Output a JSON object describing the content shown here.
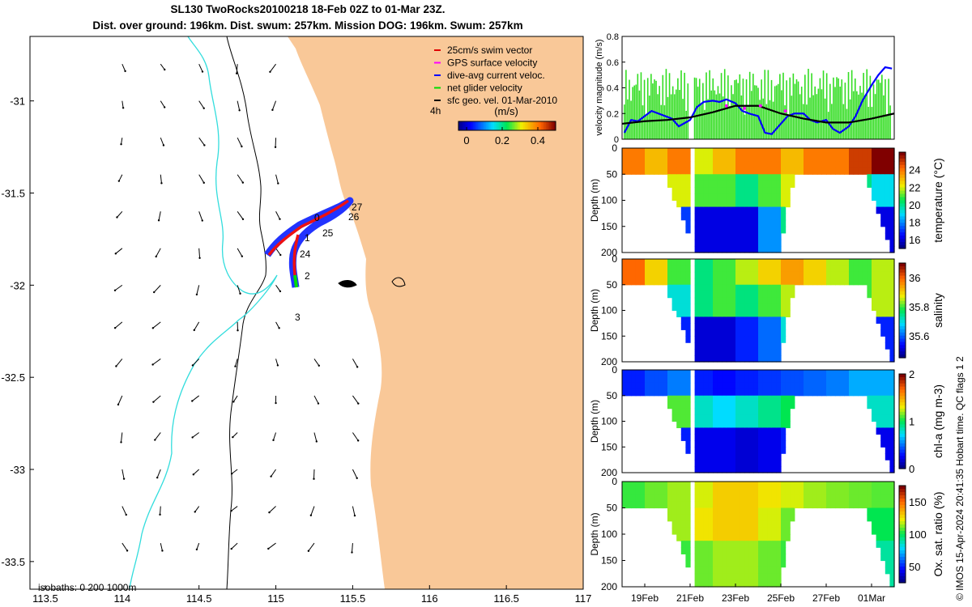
{
  "title": {
    "line1": "SL130 TwoRocks20100218 18-Feb 02Z to 01-Mar 23Z.",
    "line2": "Dist. over ground: 196km. Dist. swum: 257km. Mission DOG: 196km. Swum: 257km"
  },
  "map": {
    "x_ticks": [
      "113.5",
      "114",
      "114.5",
      "115",
      "115.5",
      "116",
      "116.5",
      "117"
    ],
    "y_ticks": [
      "-31",
      "-31.5",
      "-32",
      "-32.5",
      "-33",
      "-33.5"
    ],
    "legend": [
      {
        "label": "25cm/s swim vector",
        "color": "#e00000"
      },
      {
        "label": "GPS surface velocity",
        "color": "#ff00ff"
      },
      {
        "label": "dive-avg current veloc.",
        "color": "#0000ff"
      },
      {
        "label": "net glider velocity",
        "color": "#00dd00"
      },
      {
        "label": "sfc geo. vel. 01-Mar-2010",
        "color": "#000000"
      }
    ],
    "colorbar_label": "(m/s)",
    "colorbar_prefix": "4h",
    "colorbar_ticks": [
      "0",
      "0.2",
      "0.4"
    ],
    "isobaths_label": "isobaths: 0   200  1000m",
    "day_labels": [
      {
        "text": "27"
      },
      {
        "text": "26"
      },
      {
        "text": "25"
      },
      {
        "text": "24"
      },
      {
        "text": "1"
      },
      {
        "text": "2"
      },
      {
        "text": "3"
      },
      {
        "text": "0"
      }
    ],
    "colors": {
      "land": "#f9c898",
      "isobath_200": "#000000",
      "isobath_1000": "#33dddd"
    }
  },
  "chart_data": [
    {
      "type": "line",
      "title": "",
      "ylabel": "velocity magnitude (m/s)",
      "ylim": [
        0,
        0.8
      ],
      "yticks": [
        "0",
        "0.2",
        "0.4",
        "0.6",
        "0.8"
      ],
      "xlim_days": [
        18.0,
        30.0
      ],
      "series": [
        {
          "name": "dive-avg current veloc.",
          "color": "#0000ff",
          "x": [
            18.1,
            18.4,
            18.7,
            19.0,
            19.3,
            19.6,
            19.9,
            20.2,
            20.5,
            20.8,
            21.0,
            21.3,
            21.6,
            22.0,
            22.3,
            22.6,
            23.0,
            23.3,
            23.6,
            24.0,
            24.3,
            24.6,
            25.0,
            25.3,
            25.6,
            26.0,
            26.3,
            26.6,
            27.0,
            27.3,
            27.6,
            28.0,
            28.3,
            28.6,
            29.0,
            29.3,
            29.6,
            29.9
          ],
          "y": [
            0.05,
            0.15,
            0.14,
            0.18,
            0.22,
            0.2,
            0.18,
            0.16,
            0.1,
            0.13,
            0.15,
            0.25,
            0.29,
            0.3,
            0.29,
            0.31,
            0.28,
            0.22,
            0.2,
            0.18,
            0.05,
            0.04,
            0.12,
            0.18,
            0.2,
            0.2,
            0.15,
            0.13,
            0.15,
            0.08,
            0.05,
            0.1,
            0.18,
            0.3,
            0.42,
            0.5,
            0.56,
            0.55
          ]
        },
        {
          "name": "sfc geo. vel.",
          "color": "#000000",
          "x": [
            18.0,
            19.0,
            20.0,
            21.0,
            22.0,
            23.0,
            24.0,
            25.0,
            26.0,
            27.0,
            28.0,
            29.0,
            30.0
          ],
          "y": [
            0.12,
            0.14,
            0.15,
            0.17,
            0.21,
            0.26,
            0.26,
            0.2,
            0.16,
            0.13,
            0.13,
            0.16,
            0.2
          ]
        },
        {
          "name": "GPS surface velocity",
          "color": "#ff00ff",
          "x": [
            22.6,
            23.4,
            24.1,
            25.2
          ],
          "y": [
            0.26,
            0.24,
            0.26,
            0.22
          ]
        }
      ]
    },
    {
      "type": "heatmap",
      "variable": "temperature",
      "colorbar_label": "temperature (°C)",
      "clim": [
        15,
        26
      ],
      "cbar_ticks": [
        "16",
        "18",
        "20",
        "22",
        "24"
      ],
      "ylabel": "Depth (m)",
      "yticks": [
        "0",
        "50",
        "100",
        "150",
        "200"
      ],
      "upper": [
        24,
        23,
        24,
        22,
        23,
        24,
        24,
        23,
        24,
        24,
        25,
        26
      ],
      "mid": [
        20,
        21,
        22,
        21,
        21,
        20,
        21,
        22,
        22,
        21,
        20,
        19
      ],
      "deep": [
        17,
        18,
        17,
        16,
        16,
        16,
        18,
        20,
        20,
        19,
        18,
        16
      ]
    },
    {
      "type": "heatmap",
      "variable": "salinity",
      "colorbar_label": "salinity",
      "clim": [
        35.45,
        36.1
      ],
      "cbar_ticks": [
        "35.6",
        "35.8",
        "36"
      ],
      "ylabel": "Depth (m)",
      "yticks": [
        "0",
        "50",
        "100",
        "150",
        "200"
      ],
      "upper": [
        36.0,
        35.9,
        35.8,
        35.75,
        35.8,
        35.85,
        35.9,
        35.95,
        35.9,
        35.85,
        35.8,
        35.85
      ],
      "mid": [
        35.75,
        35.8,
        35.7,
        35.75,
        35.8,
        35.75,
        35.8,
        35.85,
        35.8,
        35.75,
        35.8,
        35.85
      ],
      "deep": [
        35.6,
        35.6,
        35.55,
        35.5,
        35.5,
        35.55,
        35.6,
        35.7,
        35.7,
        35.65,
        35.6,
        35.55
      ]
    },
    {
      "type": "heatmap",
      "variable": "chl-a",
      "colorbar_label": "chl-a (mg m-3)",
      "clim": [
        0,
        2
      ],
      "cbar_ticks": [
        "0",
        "1",
        "2"
      ],
      "ylabel": "Depth (m)",
      "yticks": [
        "0",
        "50",
        "100",
        "150",
        "200"
      ],
      "upper": [
        0.3,
        0.4,
        0.5,
        0.3,
        0.25,
        0.3,
        0.35,
        0.4,
        0.45,
        0.5,
        0.6,
        0.6
      ],
      "mid": [
        0.7,
        0.9,
        1.1,
        0.8,
        0.7,
        0.8,
        0.9,
        1.0,
        0.9,
        0.9,
        0.8,
        0.8
      ],
      "deep": [
        0.4,
        0.5,
        0.3,
        0.2,
        0.2,
        0.15,
        0.2,
        0.3,
        0.3,
        0.3,
        0.3,
        0.2
      ]
    },
    {
      "type": "heatmap",
      "variable": "oxygen",
      "colorbar_label": "Ox. sat. ratio (%)",
      "clim": [
        25,
        175
      ],
      "cbar_ticks": [
        "50",
        "100",
        "150"
      ],
      "ylabel": "Depth (m)",
      "yticks": [
        "0",
        "50",
        "100",
        "150",
        "200"
      ],
      "upper": [
        105,
        110,
        115,
        120,
        130,
        130,
        125,
        120,
        115,
        112,
        110,
        108
      ],
      "mid": [
        100,
        105,
        115,
        125,
        130,
        130,
        120,
        110,
        105,
        102,
        100,
        100
      ],
      "deep": [
        95,
        100,
        105,
        110,
        115,
        115,
        110,
        105,
        100,
        98,
        95,
        90
      ]
    }
  ],
  "time_axis": {
    "ticks": [
      "19Feb",
      "21Feb",
      "23Feb",
      "25Feb",
      "27Feb",
      "01Mar"
    ]
  },
  "credit": "© IMOS 15-Apr-2024 20:41:35 Hobart time. QC flags 1  2"
}
